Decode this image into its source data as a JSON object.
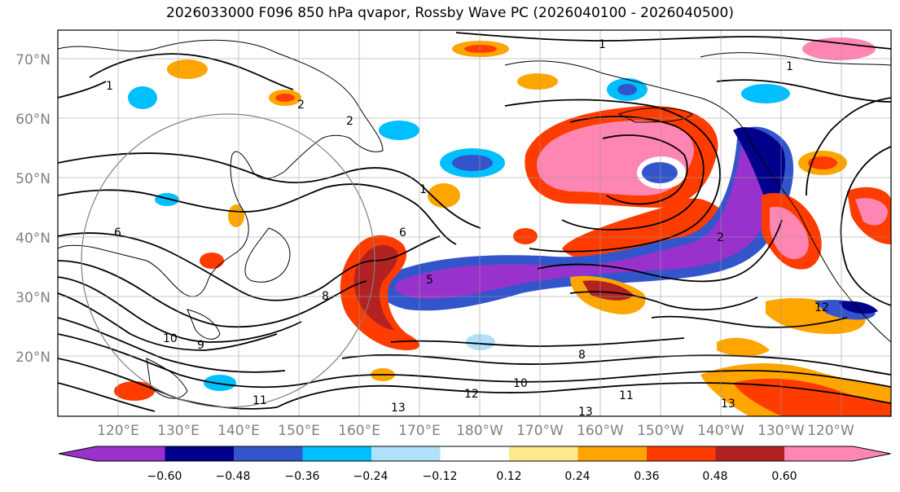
{
  "title": "2026033000 F096 850 hPa qvapor, Rossby Wave PC (2026040100 - 2026040500)",
  "lat_labels": [
    "70°N",
    "60°N",
    "50°N",
    "40°N",
    "30°N",
    "20°N"
  ],
  "lon_labels": [
    "120°E",
    "130°E",
    "140°E",
    "150°E",
    "160°E",
    "170°E",
    "180°W",
    "170°W",
    "160°W",
    "150°W",
    "140°W",
    "130°W",
    "120°W"
  ],
  "colorbar": {
    "ticks": [
      "−0.60",
      "−0.48",
      "−0.36",
      "−0.24",
      "−0.12",
      "0.12",
      "0.24",
      "0.36",
      "0.48",
      "0.60"
    ],
    "colors": [
      "#9932cc",
      "#00008b",
      "#3355cc",
      "#00bfff",
      "#b0e0fa",
      "#ffffff",
      "#ffe98a",
      "#ffa500",
      "#ff3c00",
      "#b22222",
      "#ff85b3"
    ]
  },
  "contour_labels": [
    "1",
    "1",
    "1",
    "2",
    "2",
    "1",
    "6",
    "6",
    "8",
    "8",
    "9",
    "10",
    "10",
    "11",
    "11",
    "12",
    "13",
    "13",
    "13",
    "5",
    "2",
    "12"
  ]
}
